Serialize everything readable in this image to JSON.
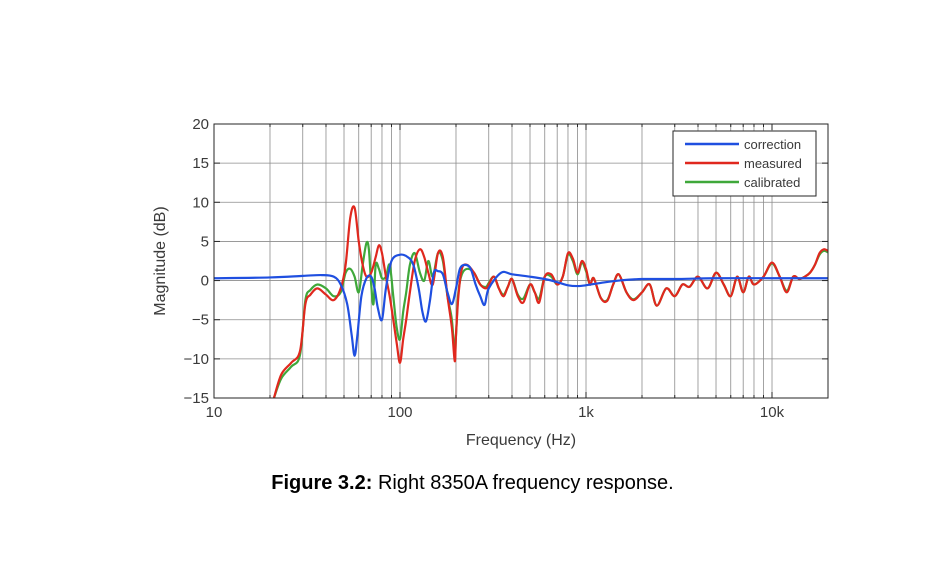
{
  "caption": {
    "label": "Figure 3.2:",
    "text": " Right 8350A frequency response."
  },
  "chart_data": {
    "type": "line",
    "title": "",
    "xlabel": "Frequency (Hz)",
    "ylabel": "Magnitude (dB)",
    "xscale": "log",
    "xlim": [
      10,
      20000
    ],
    "ylim": [
      -15,
      20
    ],
    "xticks": [
      10,
      100,
      1000,
      10000
    ],
    "xtick_labels": [
      "10",
      "100",
      "1k",
      "10k"
    ],
    "yticks": [
      -15,
      -10,
      -5,
      0,
      5,
      10,
      15,
      20
    ],
    "ytick_labels": [
      "−15",
      "−10",
      "−5",
      "0",
      "5",
      "10",
      "15",
      "20"
    ],
    "grid": true,
    "legend_position": "top-right",
    "series": [
      {
        "name": "correction",
        "color": "#1f4fe0",
        "x": [
          10,
          20,
          30,
          38,
          44,
          48,
          52,
          55,
          57,
          59,
          62,
          66,
          70,
          73,
          76,
          80,
          84,
          90,
          100,
          110,
          118,
          126,
          132,
          138,
          145,
          152,
          160,
          170,
          180,
          190,
          200,
          210,
          225,
          240,
          255,
          270,
          285,
          300,
          350,
          400,
          500,
          600,
          700,
          800,
          900,
          1000,
          1200,
          1500,
          2000,
          3000,
          5000,
          10000,
          20000
        ],
        "y": [
          0.3,
          0.4,
          0.6,
          0.7,
          0.5,
          -0.5,
          -3,
          -7,
          -9.6,
          -7,
          -2,
          0.3,
          0.5,
          -1,
          -3.5,
          -5,
          -1,
          2.5,
          3.3,
          3.0,
          2.0,
          -1,
          -4,
          -5.2,
          -2.5,
          1,
          1.2,
          0.8,
          -1.5,
          -3,
          -1,
          1.5,
          2,
          1.5,
          -0.5,
          -2,
          -3.1,
          -1,
          1,
          0.8,
          0.5,
          0.2,
          -0.2,
          -0.6,
          -0.7,
          -0.6,
          -0.3,
          0,
          0.2,
          0.2,
          0.3,
          0.3,
          0.3
        ]
      },
      {
        "name": "measured",
        "color": "#e0281e",
        "x": [
          21,
          23,
          26,
          29,
          31,
          33,
          36,
          40,
          44,
          48,
          51,
          54,
          57,
          60,
          63,
          66,
          70,
          74,
          77,
          80,
          84,
          88,
          92,
          96,
          100,
          104,
          108,
          113,
          120,
          128,
          135,
          142,
          150,
          160,
          170,
          180,
          190,
          197,
          200,
          206,
          215,
          230,
          250,
          270,
          290,
          300,
          320,
          340,
          360,
          380,
          400,
          430,
          460,
          500,
          530,
          560,
          600,
          650,
          700,
          750,
          800,
          850,
          900,
          950,
          1000,
          1050,
          1100,
          1200,
          1300,
          1400,
          1500,
          1650,
          1800,
          2000,
          2200,
          2400,
          2700,
          3000,
          3300,
          3600,
          4000,
          4500,
          5000,
          5500,
          6000,
          6500,
          7000,
          7500,
          8000,
          9000,
          10000,
          11000,
          12000,
          13000,
          14000,
          15000,
          16000,
          17000,
          18000,
          19000,
          20000
        ],
        "y": [
          -15,
          -12,
          -10.5,
          -9,
          -3,
          -1.8,
          -1,
          -1.8,
          -2.5,
          -1,
          2,
          8,
          9.3,
          5,
          2,
          0.5,
          1,
          3,
          4.5,
          3.5,
          0.5,
          -2,
          -5,
          -8,
          -10.5,
          -7.5,
          -5,
          -1.5,
          2.5,
          4,
          3,
          1,
          -0.5,
          3.5,
          3,
          -2,
          -6,
          -10.3,
          -7,
          -2,
          1.5,
          2,
          1,
          -0.5,
          -1,
          -0.5,
          0.5,
          -1,
          -2,
          -0.8,
          0.2,
          -2,
          -2.8,
          -0.5,
          -1.5,
          -2.8,
          0.5,
          0.8,
          -0.5,
          0.5,
          3.5,
          2.8,
          1,
          2.5,
          1.5,
          -0.5,
          0.3,
          -2.2,
          -2.6,
          -0.5,
          0.8,
          -1.5,
          -2.5,
          -1.5,
          -0.5,
          -3.2,
          -1,
          -2,
          -0.5,
          -0.8,
          0.5,
          -1,
          1,
          -0.5,
          -2,
          0.5,
          -1.5,
          0.5,
          -0.5,
          0.5,
          2.3,
          0.5,
          -1.5,
          0.5,
          0.2,
          0.5,
          1,
          2,
          3.5,
          4,
          3.8
        ]
      },
      {
        "name": "calibrated",
        "color": "#3fa83a",
        "x": [
          21,
          23,
          26,
          29,
          31,
          33,
          36,
          40,
          44,
          48,
          51,
          54,
          57,
          60,
          63,
          66,
          68,
          70,
          72,
          74,
          77,
          80,
          84,
          88,
          92,
          96,
          100,
          104,
          108,
          113,
          120,
          128,
          135,
          142,
          150,
          160,
          170,
          180,
          190,
          197,
          200,
          206,
          215,
          230,
          250,
          270,
          290,
          300,
          320,
          340,
          360,
          380,
          400,
          430,
          460,
          500,
          530,
          560,
          600,
          650,
          700,
          750,
          800,
          850,
          900,
          950,
          1000,
          1050,
          1100,
          1200,
          1300,
          1400,
          1500,
          1650,
          1800,
          2000,
          2200,
          2400,
          2700,
          3000,
          3300,
          3600,
          4000,
          4500,
          5000,
          5500,
          6000,
          6500,
          7000,
          7500,
          8000,
          9000,
          10000,
          11000,
          12000,
          13000,
          14000,
          15000,
          16000,
          17000,
          18000,
          19000,
          20000
        ],
        "y": [
          -15,
          -12.5,
          -11,
          -9.5,
          -2.5,
          -1.2,
          -0.5,
          -1,
          -2,
          -1.5,
          1,
          1.5,
          0.5,
          -1.5,
          2,
          4.8,
          4,
          -0.5,
          -3,
          2,
          1.5,
          0.3,
          0.5,
          2,
          -2,
          -6,
          -7.5,
          -4,
          -1.5,
          2,
          3.5,
          1,
          0,
          2.5,
          0.5,
          3.5,
          2.5,
          -2,
          -5,
          -9.5,
          -7,
          -1.5,
          0.8,
          1.5,
          1,
          -0.5,
          -0.8,
          -0.3,
          0.5,
          -1,
          -1.8,
          -0.8,
          0.2,
          -1.8,
          -2.3,
          -0.5,
          -1.5,
          -2.3,
          0.5,
          0.5,
          -0.5,
          0.5,
          3.3,
          2.5,
          0.8,
          2.3,
          1.2,
          -0.5,
          0.3,
          -2.2,
          -2.5,
          -0.5,
          0.8,
          -1.5,
          -2.4,
          -1.5,
          -0.5,
          -3.2,
          -1,
          -2,
          -0.5,
          -0.8,
          0.5,
          -1,
          1,
          -0.5,
          -2,
          0.5,
          -1.5,
          0.5,
          -0.5,
          0.5,
          2.2,
          0.5,
          -1.3,
          0.5,
          0.2,
          0.5,
          1,
          2,
          3.3,
          3.8,
          3.6
        ]
      }
    ]
  }
}
